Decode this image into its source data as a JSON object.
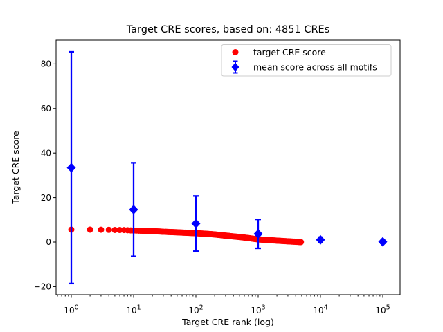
{
  "figure": {
    "title": "Target CRE scores, based on: 4851 CREs",
    "xlabel": "Target CRE rank (log)",
    "ylabel": "Target CRE score"
  },
  "colors": {
    "target_series": "#ff0000",
    "mean_series": "#0000ff",
    "legend_border": "#cccccc",
    "text": "#000000",
    "background": "#ffffff"
  },
  "legend": {
    "entries": [
      {
        "label": "target CRE score",
        "marker": "red-circle"
      },
      {
        "label": "mean score across all motifs",
        "marker": "blue-diamond-errorbar"
      }
    ]
  },
  "chart_data": {
    "type": "scatter",
    "title": "Target CRE scores, based on: 4851 CREs",
    "xlabel": "Target CRE rank (log)",
    "ylabel": "Target CRE score",
    "x_scale": "log",
    "y_scale": "linear",
    "xlim": [
      0.57,
      190000
    ],
    "ylim": [
      -23.6,
      90.7
    ],
    "x_ticks": [
      1,
      10,
      100,
      1000,
      10000,
      100000
    ],
    "y_ticks": [
      -20,
      0,
      20,
      40,
      60,
      80
    ],
    "grid": false,
    "legend_position": "upper right",
    "series": [
      {
        "name": "target CRE score",
        "type": "scatter",
        "marker": "circle",
        "color": "#ff0000",
        "n_points": 4851,
        "note": "scores for ranks 1..4851, dense monotone decreasing band; sampled anchor points [rank, score]",
        "points_sample": [
          [
            1,
            5.6
          ],
          [
            2,
            5.6
          ],
          [
            3,
            5.55
          ],
          [
            4,
            5.5
          ],
          [
            5,
            5.45
          ],
          [
            7,
            5.4
          ],
          [
            10,
            5.2
          ],
          [
            15,
            5.05
          ],
          [
            20,
            4.95
          ],
          [
            30,
            4.65
          ],
          [
            50,
            4.4
          ],
          [
            70,
            4.2
          ],
          [
            100,
            4.0
          ],
          [
            150,
            3.7
          ],
          [
            200,
            3.45
          ],
          [
            300,
            2.9
          ],
          [
            500,
            2.3
          ],
          [
            700,
            1.8
          ],
          [
            1000,
            1.2
          ],
          [
            1500,
            0.9
          ],
          [
            2000,
            0.65
          ],
          [
            3000,
            0.35
          ],
          [
            4000,
            0.15
          ],
          [
            4851,
            0.0
          ]
        ]
      },
      {
        "name": "mean score across all motifs",
        "type": "scatter_errorbar",
        "marker": "diamond",
        "color": "#0000ff",
        "x": [
          1,
          10,
          100,
          1000,
          10000,
          100000
        ],
        "y": [
          33.4,
          14.6,
          8.3,
          3.7,
          1.0,
          0.1
        ],
        "yerr": [
          52.0,
          21.0,
          12.4,
          6.5,
          1.2,
          0.6
        ]
      }
    ]
  }
}
